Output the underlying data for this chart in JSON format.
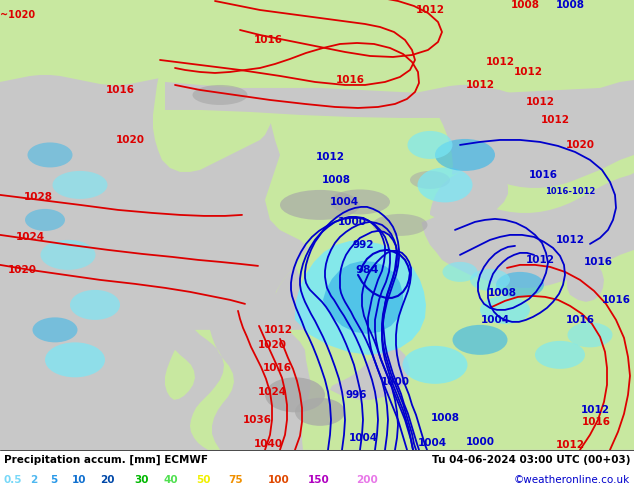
{
  "title_left": "Precipitation accum. [mm] ECMWF",
  "title_right": "Tu 04-06-2024 03:00 UTC (00+03)",
  "credit": "©weatheronline.co.uk",
  "legend_values": [
    "0.5",
    "2",
    "5",
    "10",
    "20",
    "30",
    "40",
    "50",
    "75",
    "100",
    "150",
    "200"
  ],
  "legend_colors_display": [
    "#78d8f8",
    "#50b8f0",
    "#2898e8",
    "#1070d0",
    "#0048a8",
    "#00b800",
    "#50e050",
    "#f0f000",
    "#f09000",
    "#e04800",
    "#b000c0",
    "#e878e8"
  ],
  "ocean_color": "#c8c8c8",
  "land_color": "#c8e8a0",
  "precip_light_color": "#78e8f8",
  "precip_mid_color": "#40b8e8",
  "fig_width": 6.34,
  "fig_height": 4.9,
  "dpi": 100,
  "bottom_bar_height": 0.082,
  "bottom_bg": "#ffffff",
  "label_color_red": "#dd0000",
  "label_color_blue": "#0000cc",
  "isobar_red": "#dd0000",
  "isobar_blue": "#0000cc"
}
